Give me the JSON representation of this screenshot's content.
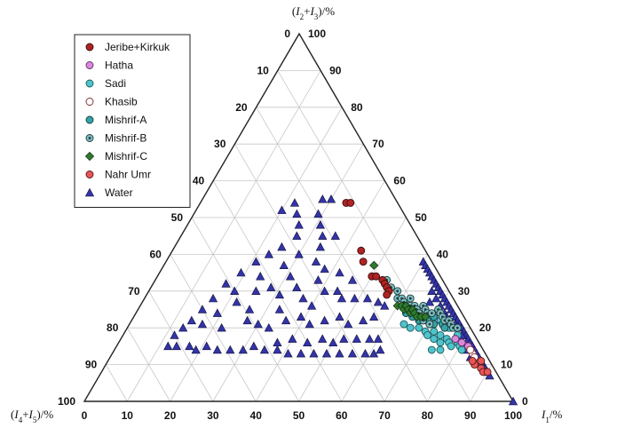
{
  "chart_data": {
    "type": "scatter",
    "subtype": "ternary",
    "title": "",
    "axes": {
      "top": {
        "label": "(I2+I3)/%",
        "ticks": [
          "0",
          "10",
          "20",
          "30",
          "40",
          "50",
          "60",
          "70",
          "80",
          "90",
          "100"
        ]
      },
      "left": {
        "label": "(I4+I5)/%",
        "ticks": [
          "0",
          "10",
          "20",
          "30",
          "40",
          "50",
          "60",
          "70",
          "80",
          "90",
          "100"
        ]
      },
      "right": {
        "label": "I1/%",
        "ticks": [
          "0",
          "10",
          "20",
          "30",
          "40",
          "50",
          "60",
          "70",
          "80",
          "90",
          "100"
        ]
      }
    },
    "grid": true,
    "grid_step": 10,
    "legend_position": "top-left",
    "series": [
      {
        "name": "Jeribe+Kirkuk",
        "marker": "circle",
        "color": "#b02323",
        "stroke": "#3a0d0d",
        "points": [
          [
            34,
            54,
            12
          ],
          [
            35,
            54,
            11
          ],
          [
            44,
            41,
            15
          ],
          [
            46,
            38,
            16
          ],
          [
            50,
            34,
            16
          ],
          [
            51,
            34,
            15
          ],
          [
            53,
            33,
            14
          ],
          [
            54,
            32,
            14
          ],
          [
            55,
            31,
            14
          ],
          [
            56,
            30,
            14
          ],
          [
            56,
            29,
            15
          ]
        ]
      },
      {
        "name": "Hatha",
        "marker": "circle",
        "color": "#d98ad8",
        "stroke": "#6a2a6a",
        "points": [
          [
            82,
            15,
            3
          ],
          [
            80,
            16,
            4
          ],
          [
            78,
            17,
            5
          ]
        ]
      },
      {
        "name": "Sadi",
        "marker": "circle",
        "color": "#4fc4cc",
        "stroke": "#1d5a5e",
        "points": [
          [
            64,
            21,
            15
          ],
          [
            66,
            20,
            14
          ],
          [
            68,
            20,
            12
          ],
          [
            70,
            19,
            11
          ],
          [
            71,
            18,
            11
          ],
          [
            72,
            19,
            9
          ],
          [
            73,
            17,
            10
          ],
          [
            74,
            18,
            8
          ],
          [
            75,
            16,
            9
          ],
          [
            76,
            17,
            7
          ],
          [
            77,
            16,
            7
          ],
          [
            78,
            15,
            7
          ],
          [
            79,
            16,
            5
          ],
          [
            80,
            15,
            5
          ],
          [
            81,
            14,
            5
          ],
          [
            78,
            18,
            4
          ],
          [
            72,
            22,
            6
          ],
          [
            68,
            23,
            9
          ],
          [
            75,
            20,
            5
          ],
          [
            70,
            21,
            9
          ],
          [
            74,
            14,
            12
          ],
          [
            76,
            14,
            10
          ]
        ]
      },
      {
        "name": "Khasib",
        "marker": "circle",
        "color": "#ffffff",
        "stroke": "#7a2a2a",
        "points": [
          [
            84,
            13,
            3
          ],
          [
            85,
            12,
            3
          ],
          [
            83,
            14,
            3
          ]
        ]
      },
      {
        "name": "Mishrif-A",
        "marker": "circle",
        "color": "#35a3a8",
        "stroke": "#123c3e",
        "points": [
          [
            62,
            26,
            12
          ],
          [
            63,
            24,
            13
          ],
          [
            65,
            23,
            12
          ],
          [
            66,
            24,
            10
          ],
          [
            67,
            22,
            11
          ],
          [
            69,
            22,
            9
          ],
          [
            70,
            23,
            7
          ],
          [
            71,
            21,
            8
          ],
          [
            73,
            21,
            6
          ],
          [
            74,
            20,
            6
          ]
        ]
      },
      {
        "name": "Mishrif-B",
        "marker": "circle-dot",
        "color": "#7fbfc3",
        "stroke": "#1f3a3c",
        "points": [
          [
            54,
            33,
            13
          ],
          [
            56,
            31,
            13
          ],
          [
            58,
            30,
            12
          ],
          [
            59,
            28,
            13
          ],
          [
            60,
            28,
            12
          ],
          [
            61,
            27,
            12
          ],
          [
            62,
            28,
            10
          ],
          [
            63,
            26,
            11
          ],
          [
            64,
            26,
            10
          ],
          [
            65,
            25,
            10
          ],
          [
            66,
            26,
            8
          ],
          [
            67,
            25,
            8
          ],
          [
            68,
            24,
            8
          ],
          [
            69,
            24,
            7
          ],
          [
            70,
            25,
            5
          ],
          [
            71,
            24,
            5
          ],
          [
            72,
            23,
            5
          ],
          [
            73,
            22,
            5
          ],
          [
            74,
            22,
            4
          ],
          [
            75,
            21,
            4
          ],
          [
            76,
            20,
            4
          ],
          [
            77,
            20,
            3
          ],
          [
            66,
            24,
            10
          ],
          [
            68,
            22,
            10
          ],
          [
            70,
            21,
            9
          ]
        ]
      },
      {
        "name": "Mishrif-C",
        "marker": "diamond",
        "color": "#2f7a2f",
        "stroke": "#0d2a0d",
        "points": [
          [
            49,
            37,
            14
          ],
          [
            60,
            26,
            14
          ],
          [
            61,
            26,
            13
          ],
          [
            62,
            25,
            13
          ],
          [
            62,
            26,
            12
          ],
          [
            63,
            25,
            12
          ],
          [
            64,
            24,
            12
          ],
          [
            64,
            25,
            11
          ],
          [
            65,
            24,
            11
          ],
          [
            66,
            23,
            11
          ],
          [
            67,
            23,
            10
          ],
          [
            68,
            23,
            9
          ]
        ]
      },
      {
        "name": "Nahr Umr",
        "marker": "circle",
        "color": "#e85656",
        "stroke": "#5a1616",
        "points": [
          [
            86,
            10,
            4
          ],
          [
            88,
            9,
            3
          ],
          [
            89,
            8,
            3
          ],
          [
            90,
            8,
            2
          ],
          [
            87,
            11,
            2
          ],
          [
            85,
            11,
            4
          ]
        ]
      },
      {
        "name": "Water",
        "marker": "triangle",
        "color": "#3434a8",
        "stroke": "#0d0d3a",
        "points": [
          [
            20,
            52,
            28
          ],
          [
            22,
            54,
            24
          ],
          [
            24,
            51,
            25
          ],
          [
            26,
            48,
            26
          ],
          [
            28,
            55,
            17
          ],
          [
            30,
            55,
            15
          ],
          [
            29,
            51,
            20
          ],
          [
            31,
            48,
            21
          ],
          [
            33,
            45,
            22
          ],
          [
            27,
            45,
            28
          ],
          [
            25,
            42,
            33
          ],
          [
            23,
            40,
            37
          ],
          [
            21,
            38,
            41
          ],
          [
            19,
            35,
            46
          ],
          [
            17,
            32,
            51
          ],
          [
            16,
            28,
            56
          ],
          [
            15,
            25,
            60
          ],
          [
            14,
            22,
            64
          ],
          [
            13,
            20,
            67
          ],
          [
            12,
            18,
            70
          ],
          [
            12,
            15,
            73
          ],
          [
            14,
            15,
            71
          ],
          [
            17,
            15,
            68
          ],
          [
            19,
            14,
            67
          ],
          [
            21,
            15,
            64
          ],
          [
            24,
            14,
            62
          ],
          [
            27,
            14,
            59
          ],
          [
            30,
            14,
            56
          ],
          [
            32,
            15,
            53
          ],
          [
            35,
            14,
            51
          ],
          [
            38,
            14,
            48
          ],
          [
            41,
            13,
            46
          ],
          [
            44,
            13,
            43
          ],
          [
            47,
            13,
            40
          ],
          [
            50,
            13,
            37
          ],
          [
            53,
            13,
            34
          ],
          [
            56,
            13,
            31
          ],
          [
            59,
            13,
            28
          ],
          [
            61,
            13,
            26
          ],
          [
            62,
            14,
            24
          ],
          [
            37,
            16,
            47
          ],
          [
            40,
            17,
            43
          ],
          [
            44,
            16,
            40
          ],
          [
            47,
            17,
            36
          ],
          [
            50,
            16,
            34
          ],
          [
            52,
            17,
            31
          ],
          [
            55,
            17,
            28
          ],
          [
            58,
            17,
            25
          ],
          [
            60,
            17,
            23
          ],
          [
            33,
            20,
            47
          ],
          [
            36,
            22,
            42
          ],
          [
            39,
            23,
            38
          ],
          [
            42,
            21,
            37
          ],
          [
            45,
            22,
            33
          ],
          [
            48,
            23,
            29
          ],
          [
            51,
            21,
            28
          ],
          [
            54,
            22,
            24
          ],
          [
            56,
            23,
            21
          ],
          [
            41,
            30,
            29
          ],
          [
            38,
            33,
            29
          ],
          [
            44,
            30,
            26
          ],
          [
            46,
            28,
            26
          ],
          [
            49,
            28,
            23
          ],
          [
            52,
            28,
            20
          ],
          [
            55,
            27,
            18
          ],
          [
            57,
            26,
            17
          ],
          [
            40,
            26,
            34
          ],
          [
            37,
            28,
            35
          ],
          [
            34,
            31,
            35
          ],
          [
            31,
            34,
            35
          ],
          [
            28,
            37,
            35
          ],
          [
            35,
            38,
            27
          ],
          [
            38,
            36,
            26
          ],
          [
            42,
            35,
            23
          ],
          [
            46,
            33,
            21
          ],
          [
            25,
            30,
            45
          ],
          [
            28,
            31,
            41
          ],
          [
            31,
            29,
            40
          ],
          [
            22,
            27,
            51
          ],
          [
            19,
            24,
            57
          ],
          [
            17,
            21,
            62
          ],
          [
            22,
            20,
            58
          ],
          [
            27,
            22,
            51
          ],
          [
            30,
            21,
            49
          ],
          [
            26,
            25,
            49
          ],
          [
            33,
            25,
            42
          ],
          [
            20,
            30,
            50
          ],
          [
            24,
            34,
            42
          ],
          [
            30,
            40,
            30
          ],
          [
            34,
            42,
            24
          ],
          [
            36,
            45,
            19
          ],
          [
            60,
            38,
            2
          ],
          [
            61,
            37,
            2
          ],
          [
            62,
            36,
            2
          ],
          [
            63,
            35,
            2
          ],
          [
            64,
            34,
            2
          ],
          [
            65,
            33,
            2
          ],
          [
            66,
            32,
            2
          ],
          [
            67,
            31,
            2
          ],
          [
            68,
            30,
            2
          ],
          [
            69,
            29,
            2
          ],
          [
            70,
            28,
            2
          ],
          [
            71,
            27,
            2
          ],
          [
            72,
            26,
            2
          ],
          [
            73,
            25,
            2
          ],
          [
            74,
            24,
            2
          ],
          [
            75,
            23,
            2
          ],
          [
            76,
            22,
            2
          ],
          [
            77,
            21,
            2
          ],
          [
            78,
            20,
            2
          ],
          [
            79,
            19,
            2
          ],
          [
            80,
            18,
            2
          ],
          [
            81,
            17,
            2
          ],
          [
            82,
            16,
            2
          ],
          [
            83,
            15,
            2
          ],
          [
            84,
            14,
            2
          ],
          [
            85,
            13,
            2
          ],
          [
            86,
            12,
            2
          ],
          [
            87,
            11,
            2
          ],
          [
            88,
            10,
            2
          ],
          [
            89,
            9,
            2
          ],
          [
            90,
            8,
            2
          ],
          [
            91,
            7,
            2
          ],
          [
            66,
            30,
            4
          ],
          [
            68,
            28,
            4
          ],
          [
            70,
            26,
            4
          ],
          [
            72,
            24,
            4
          ],
          [
            74,
            22,
            4
          ],
          [
            76,
            20,
            4
          ],
          [
            78,
            18,
            4
          ],
          [
            80,
            16,
            4
          ],
          [
            82,
            14,
            4
          ],
          [
            84,
            12,
            4
          ],
          [
            79,
            18,
            3
          ],
          [
            76,
            21,
            3
          ],
          [
            73,
            23,
            4
          ],
          [
            70,
            25,
            5
          ],
          [
            67,
            27,
            6
          ],
          [
            100,
            0,
            0
          ]
        ]
      }
    ]
  }
}
